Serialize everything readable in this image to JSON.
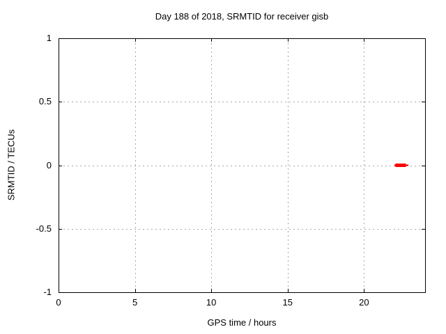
{
  "chart_data": {
    "type": "scatter",
    "title": "Day 188 of 2018, SRMTID for receiver gisb",
    "xlabel": "GPS time / hours",
    "ylabel": "SRMTID / TECUs",
    "xlim": [
      0,
      24
    ],
    "ylim": [
      -1,
      1
    ],
    "xticks": [
      0,
      5,
      10,
      15,
      20
    ],
    "yticks": [
      1,
      0.5,
      0,
      -0.5,
      -1
    ],
    "grid": true,
    "grid_color": "#a6a6a6",
    "border_color": "#000000",
    "background_color": "#ffffff",
    "legend": "none",
    "series": [
      {
        "name": "SRMTID",
        "color": "#ff0000",
        "marker": "square",
        "marker_size": 5,
        "points": [
          {
            "x": 22.17,
            "y": 0
          },
          {
            "x": 22.4,
            "y": 0
          },
          {
            "x": 22.63,
            "y": 0
          }
        ],
        "line_segments": [
          {
            "x1": 21.99,
            "y1": 0,
            "x2": 22.91,
            "y2": 0
          }
        ]
      }
    ]
  }
}
